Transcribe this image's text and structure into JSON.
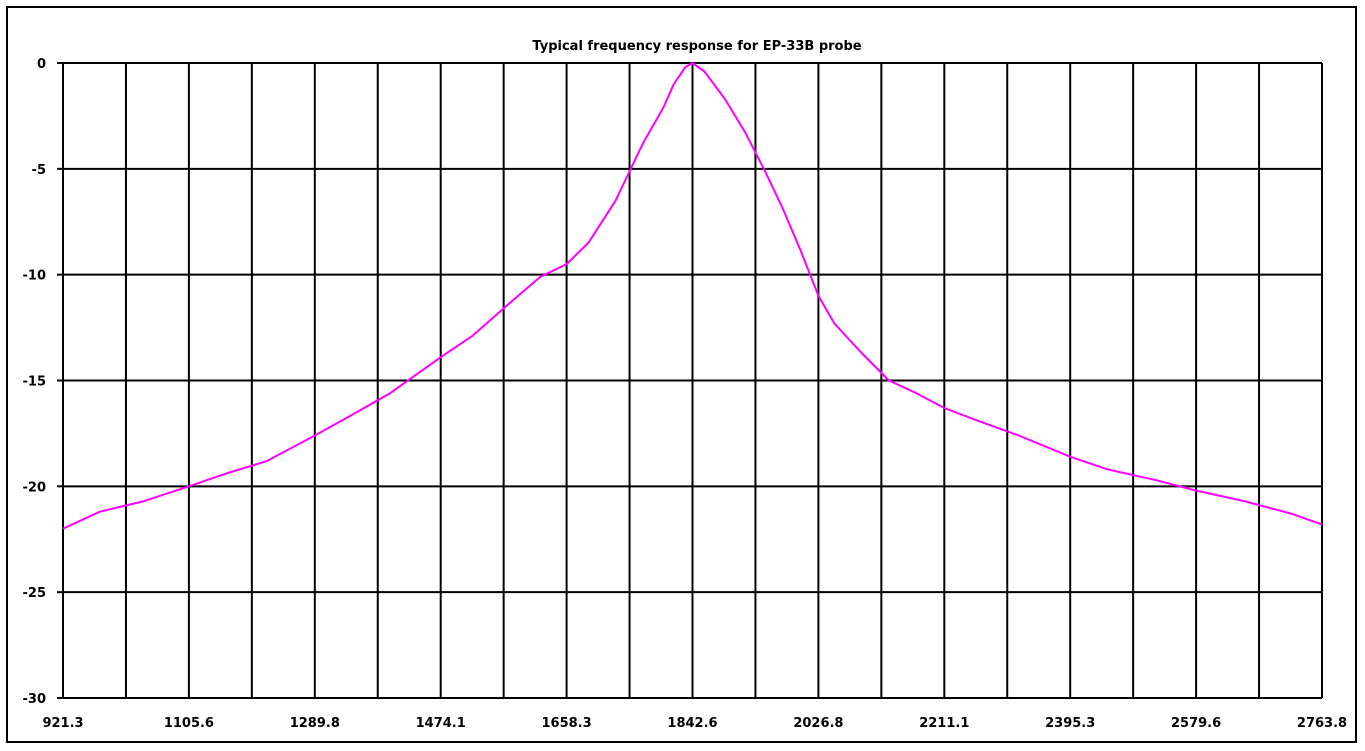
{
  "chart_data": {
    "type": "line",
    "title": "Typical frequency response for EP-33B probe",
    "xlabel": "",
    "ylabel": "",
    "x_tick_labels": [
      "921.3",
      "1105.6",
      "1289.8",
      "1474.1",
      "1658.3",
      "1842.6",
      "2026.8",
      "2211.1",
      "2395.3",
      "2579.6",
      "2763.8"
    ],
    "y_tick_labels": [
      "0",
      "-5",
      "-10",
      "-15",
      "-20",
      "-25",
      "-30"
    ],
    "xlim": [
      921.3,
      2763.8
    ],
    "ylim": [
      -30,
      0
    ],
    "grid": true,
    "legend": "none",
    "series": [
      {
        "color": "#ff00ff",
        "points": [
          [
            921.3,
            -22.0
          ],
          [
            975,
            -21.2
          ],
          [
            1040,
            -20.7
          ],
          [
            1105.6,
            -20.0
          ],
          [
            1160,
            -19.4
          ],
          [
            1220,
            -18.8
          ],
          [
            1289.8,
            -17.6
          ],
          [
            1340,
            -16.7
          ],
          [
            1400,
            -15.6
          ],
          [
            1474.1,
            -13.9
          ],
          [
            1520,
            -12.9
          ],
          [
            1580,
            -11.2
          ],
          [
            1620,
            -10.1
          ],
          [
            1658.3,
            -9.5
          ],
          [
            1690,
            -8.5
          ],
          [
            1730,
            -6.5
          ],
          [
            1770,
            -3.8
          ],
          [
            1800,
            -2.1
          ],
          [
            1815,
            -1.0
          ],
          [
            1832,
            -0.2
          ],
          [
            1842.6,
            0.0
          ],
          [
            1860,
            -0.4
          ],
          [
            1890,
            -1.7
          ],
          [
            1920,
            -3.3
          ],
          [
            1950,
            -5.2
          ],
          [
            1975,
            -6.9
          ],
          [
            2000,
            -8.8
          ],
          [
            2026.8,
            -11.0
          ],
          [
            2050,
            -12.3
          ],
          [
            2090,
            -13.7
          ],
          [
            2130,
            -15.0
          ],
          [
            2170,
            -15.6
          ],
          [
            2211.1,
            -16.3
          ],
          [
            2260,
            -16.9
          ],
          [
            2320,
            -17.6
          ],
          [
            2395.3,
            -18.6
          ],
          [
            2450,
            -19.2
          ],
          [
            2520,
            -19.7
          ],
          [
            2579.6,
            -20.2
          ],
          [
            2650,
            -20.7
          ],
          [
            2720,
            -21.3
          ],
          [
            2763.8,
            -21.8
          ]
        ]
      }
    ]
  }
}
